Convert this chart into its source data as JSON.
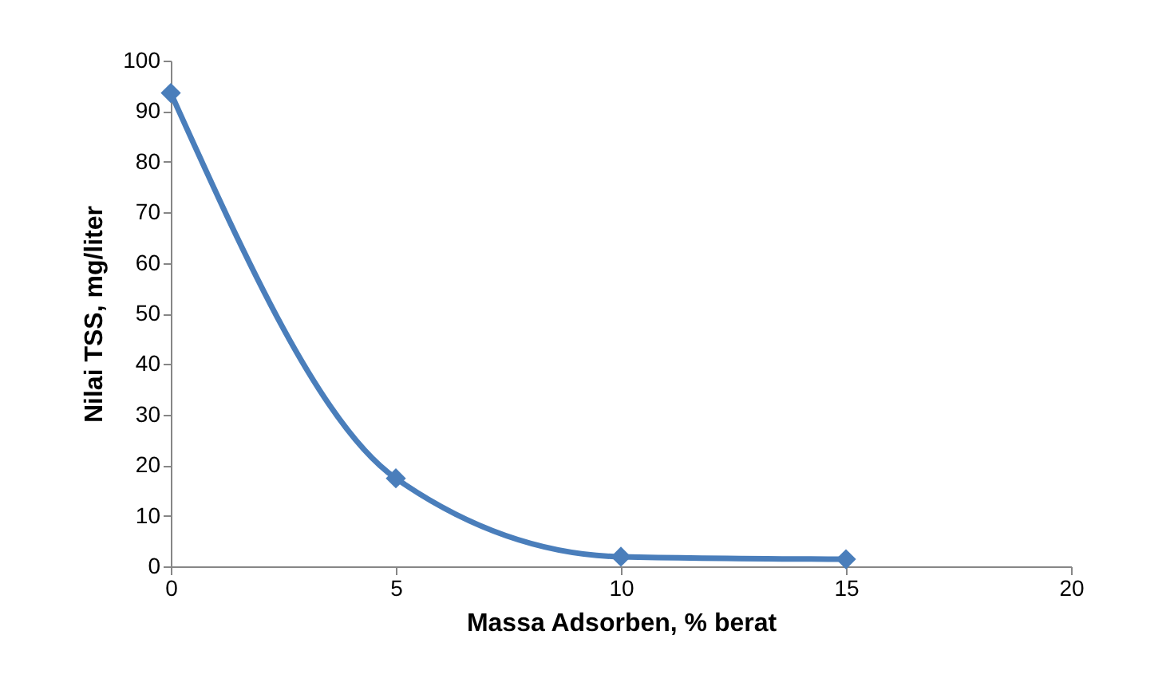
{
  "chart_data": {
    "type": "line",
    "xlabel": "Massa Adsorben, % berat",
    "ylabel": "Nilai TSS, mg/liter",
    "x": [
      0,
      5,
      10,
      15
    ],
    "series": [
      {
        "color": "#4a7ebb",
        "values": [
          93.6,
          17.4,
          1.9,
          1.4
        ]
      }
    ],
    "xlim": [
      0,
      20
    ],
    "xticks": [
      0,
      5,
      10,
      15,
      20
    ],
    "ylim": [
      0,
      100
    ],
    "yticks": [
      0,
      10,
      20,
      30,
      40,
      50,
      60,
      70,
      80,
      90,
      100
    ],
    "grid": false,
    "marker": "diamond",
    "line_style": "solid"
  }
}
